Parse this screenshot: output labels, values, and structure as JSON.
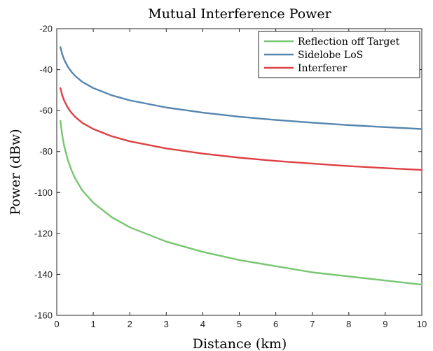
{
  "chart_data": {
    "type": "line",
    "title": "Mutual Interference Power",
    "xlabel": "Distance (km)",
    "ylabel": "Power (dBw)",
    "xlim": [
      0,
      10
    ],
    "ylim": [
      -160,
      -20
    ],
    "xticks": [
      0,
      1,
      2,
      3,
      4,
      5,
      6,
      7,
      8,
      9,
      10
    ],
    "yticks": [
      -160,
      -140,
      -120,
      -100,
      -80,
      -60,
      -40,
      -20
    ],
    "legend_position": "top-right",
    "grid": false,
    "series": [
      {
        "name": "Reflection off Target",
        "color": "#77c670",
        "x": [
          0.1,
          0.15,
          0.2,
          0.3,
          0.4,
          0.5,
          0.7,
          1,
          1.5,
          2,
          3,
          4,
          5,
          6,
          7,
          8,
          9,
          10
        ],
        "y": [
          -65,
          -72,
          -77,
          -84,
          -89,
          -93,
          -99,
          -105,
          -112,
          -117,
          -124,
          -129,
          -133,
          -136,
          -139,
          -141,
          -143,
          -145
        ]
      },
      {
        "name": "Sidelobe LoS",
        "color": "#5585b0",
        "x": [
          0.1,
          0.15,
          0.2,
          0.3,
          0.4,
          0.5,
          0.7,
          1,
          1.5,
          2,
          3,
          4,
          5,
          6,
          7,
          8,
          9,
          10
        ],
        "y": [
          -29,
          -32.5,
          -35,
          -38.5,
          -41,
          -43,
          -46,
          -49,
          -52.5,
          -55,
          -58.5,
          -61,
          -63,
          -64.6,
          -65.9,
          -67.1,
          -68.1,
          -69
        ]
      },
      {
        "name": "Interferer",
        "color": "#dd4144",
        "x": [
          0.1,
          0.15,
          0.2,
          0.3,
          0.4,
          0.5,
          0.7,
          1,
          1.5,
          2,
          3,
          4,
          5,
          6,
          7,
          8,
          9,
          10
        ],
        "y": [
          -49,
          -52.5,
          -55,
          -58.5,
          -61,
          -63,
          -66,
          -69,
          -72.5,
          -75,
          -78.5,
          -81,
          -83,
          -84.6,
          -85.9,
          -87.1,
          -88.1,
          -89
        ]
      }
    ]
  }
}
